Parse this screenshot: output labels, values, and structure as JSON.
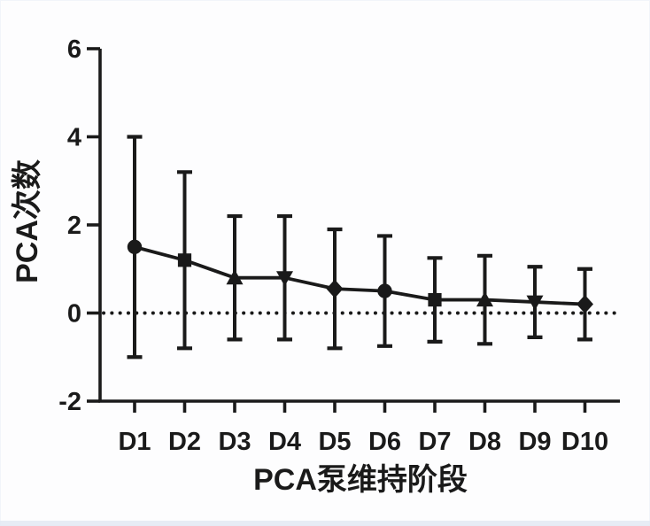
{
  "chart_data": {
    "type": "line",
    "title": "",
    "xlabel": "PCA泵维持阶段",
    "ylabel": "PCA次数",
    "categories": [
      "D1",
      "D2",
      "D3",
      "D4",
      "D5",
      "D6",
      "D7",
      "D8",
      "D9",
      "D10"
    ],
    "series": [
      {
        "values": [
          1.5,
          1.2,
          0.8,
          0.8,
          0.55,
          0.5,
          0.3,
          0.3,
          0.25,
          0.2
        ],
        "error_upper": [
          2.5,
          2.0,
          1.4,
          1.4,
          1.35,
          1.25,
          0.95,
          1.0,
          0.8,
          0.8
        ],
        "error_lower": [
          2.5,
          2.0,
          1.4,
          1.4,
          1.35,
          1.25,
          0.95,
          1.0,
          0.8,
          0.8
        ],
        "markers": [
          "circle",
          "square",
          "triangle-up",
          "triangle-down",
          "diamond",
          "circle",
          "square",
          "triangle-up",
          "triangle-down",
          "diamond"
        ],
        "color": "#1a1a1a"
      }
    ],
    "ylim": [
      -2,
      6
    ],
    "yticks": [
      6,
      4,
      2,
      0,
      -2
    ],
    "grid": false,
    "legend": "none",
    "zero_line": {
      "value": 0,
      "style": "dotted"
    }
  }
}
